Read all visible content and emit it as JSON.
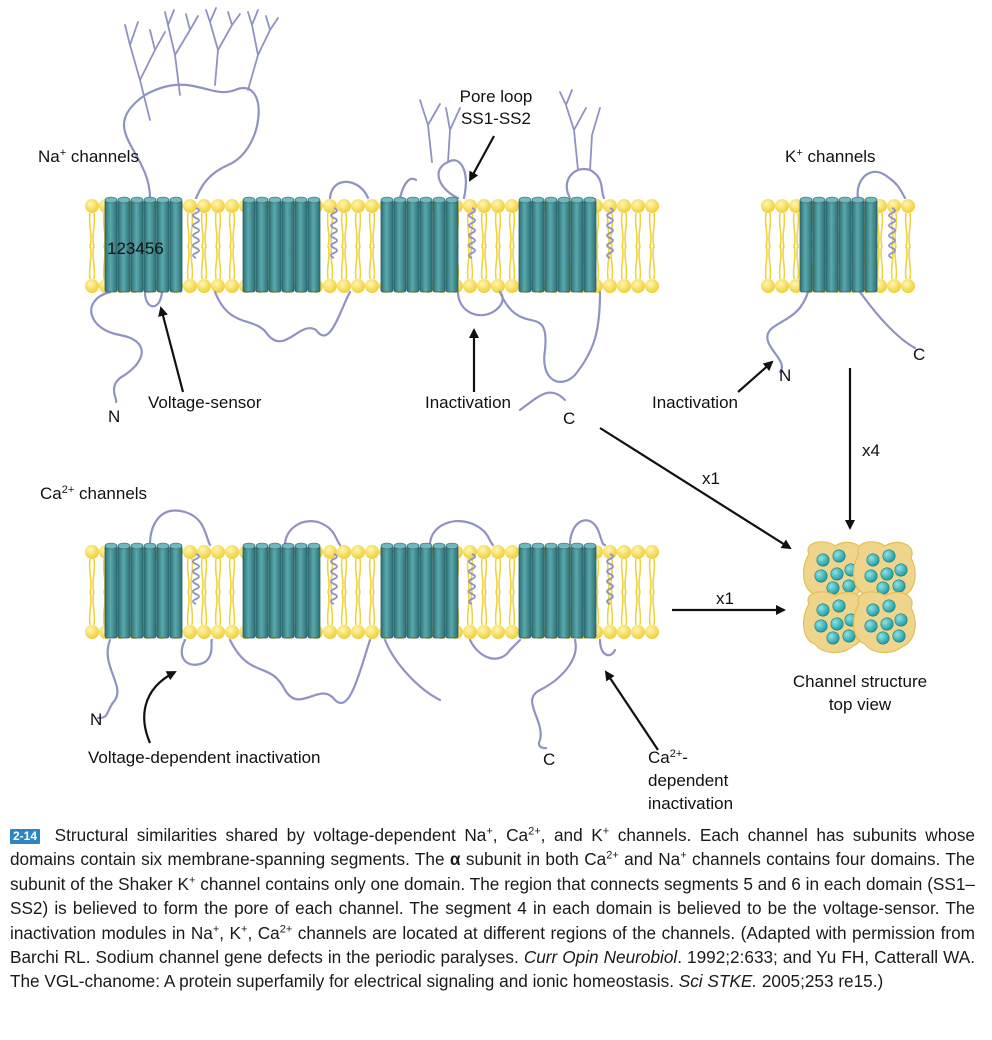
{
  "figure": {
    "na": {
      "title_main": "Na",
      "title_sup": "+",
      "title_rest": " channels",
      "segment_numbers": "123456",
      "pore_loop_line1": "Pore loop",
      "pore_loop_line2": "SS1-SS2",
      "voltage_sensor": "Voltage-sensor",
      "inactivation": "Inactivation",
      "n_terminus": "N",
      "c_terminus": "C"
    },
    "k": {
      "title_main": "K",
      "title_sup": "+",
      "title_rest": " channels",
      "inactivation": "Inactivation",
      "n_terminus": "N",
      "c_terminus": "C"
    },
    "ca": {
      "title_main": "Ca",
      "title_sup": "2+",
      "title_rest": " channels",
      "voltage_dependent_inactivation": "Voltage-dependent inactivation",
      "ca_dep_line1_main": "Ca",
      "ca_dep_line1_sup": "2+",
      "ca_dep_line1_rest": "-",
      "ca_dep_line2": "dependent",
      "ca_dep_line3": "inactivation",
      "n_terminus": "N",
      "c_terminus": "C"
    },
    "arrows": {
      "na_to_structure": "x1",
      "k_to_structure": "x4",
      "ca_to_structure": "x1"
    },
    "structure": {
      "label_line1": "Channel structure",
      "label_line2": "top view"
    },
    "colors": {
      "membrane_lipid": "#f1d33e",
      "helix_teal": "#3f8f95",
      "loop_lavender": "#8f93c4",
      "structure_fill": "#efd58c",
      "subunit_teal": "#29b3b3",
      "caption_badge": "#2e86c1"
    }
  },
  "caption": {
    "figure_number": "2-14",
    "p1": " Structural similarities shared by voltage-dependent Na",
    "s1": "+",
    "p2": ", Ca",
    "s2": "2+",
    "p3": ", and K",
    "s3": "+",
    "p4": " channels. Each channel has subunits whose domains contain six membrane-spanning segments. The ",
    "alpha": "α",
    "p5": " subunit in both Ca",
    "s5": "2+",
    "p6": " and Na",
    "s6": "+",
    "p7": " channels contains four domains. The subunit of the Shaker K",
    "s7": "+",
    "p8": " channel contains only one domain. The region that connects segments 5 and 6 in each domain (SS1–SS2) is believed to form the pore of each channel. The segment 4 in each domain is believed to be the voltage-sensor. The inactivation modules in Na",
    "s8": "+",
    "p9": ", K",
    "s9": "+",
    "p10": ", Ca",
    "s10": "2+",
    "p11": " channels are located at different regions of the channels. (Adapted with permission from Barchi RL. Sodium channel gene defects in the periodic paralyses. ",
    "journal1": "Curr Opin Neurobiol",
    "p12": ". 1992;2:633; and Yu FH, Catterall WA. The VGL-chanome: A protein superfamily for electrical signaling and ionic homeostasis. ",
    "journal2": "Sci STKE.",
    "p13": " 2005;253 re15.)"
  }
}
